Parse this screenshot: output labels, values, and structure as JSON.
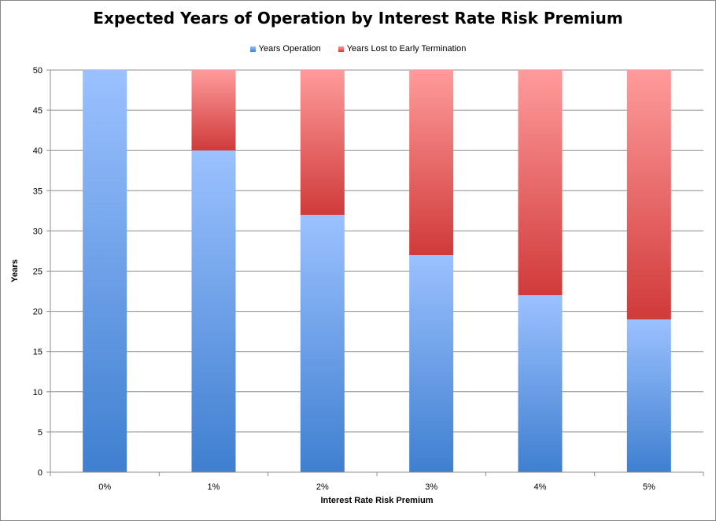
{
  "chart_data": {
    "type": "bar",
    "stacked": true,
    "title": "Expected Years of Operation by Interest Rate Risk Premium",
    "xlabel": "Interest Rate Risk Premium",
    "ylabel": "Years",
    "categories": [
      "0%",
      "1%",
      "2%",
      "3%",
      "4%",
      "5%"
    ],
    "series": [
      {
        "name": "Years Operation",
        "values": [
          50,
          40,
          32,
          27,
          22,
          19
        ],
        "color_top": "#9BC1FF",
        "color_bottom": "#3F7FD0"
      },
      {
        "name": "Years Lost to Early Termination",
        "values": [
          0,
          10,
          18,
          23,
          28,
          31
        ],
        "color_top": "#FF9B9B",
        "color_bottom": "#D03A3A"
      }
    ],
    "ylim": [
      0,
      50
    ],
    "yticks": [
      0,
      5,
      10,
      15,
      20,
      25,
      30,
      35,
      40,
      45,
      50
    ],
    "grid": true,
    "legend_position": "top"
  }
}
